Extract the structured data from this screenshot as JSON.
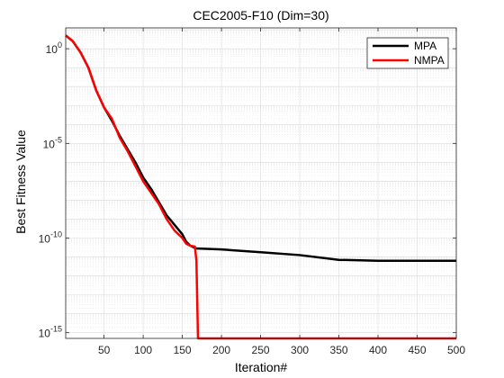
{
  "chart_data": {
    "type": "line",
    "title": "CEC2005-F10 (Dim=30)",
    "xlabel": "Iteration#",
    "ylabel": "Best Fitness Value",
    "xlim": [
      1,
      500
    ],
    "ylim_exponent": [
      -15.3,
      1.1
    ],
    "yscale": "log",
    "grid": true,
    "legend_position": "top-right",
    "x_ticks": [
      50,
      100,
      150,
      200,
      250,
      300,
      350,
      400,
      450,
      500
    ],
    "y_ticks": [
      {
        "base": "10",
        "exp": "0",
        "value": 0
      },
      {
        "base": "10",
        "exp": "-5",
        "value": -5
      },
      {
        "base": "10",
        "exp": "-10",
        "value": -10
      },
      {
        "base": "10",
        "exp": "-15",
        "value": -15
      }
    ],
    "series": [
      {
        "name": "MPA",
        "color": "#000000",
        "points_log10": [
          [
            1,
            0.7
          ],
          [
            10,
            0.4
          ],
          [
            20,
            -0.2
          ],
          [
            30,
            -1.0
          ],
          [
            40,
            -2.2
          ],
          [
            50,
            -3.1
          ],
          [
            60,
            -3.8
          ],
          [
            70,
            -4.6
          ],
          [
            80,
            -5.3
          ],
          [
            90,
            -6.0
          ],
          [
            100,
            -6.8
          ],
          [
            110,
            -7.4
          ],
          [
            120,
            -8.1
          ],
          [
            130,
            -8.8
          ],
          [
            140,
            -9.3
          ],
          [
            150,
            -9.8
          ],
          [
            155,
            -10.2
          ],
          [
            160,
            -10.4
          ],
          [
            165,
            -10.5
          ],
          [
            168,
            -10.55
          ],
          [
            170,
            -10.55
          ],
          [
            200,
            -10.6
          ],
          [
            250,
            -10.75
          ],
          [
            300,
            -10.9
          ],
          [
            350,
            -11.15
          ],
          [
            400,
            -11.2
          ],
          [
            450,
            -11.2
          ],
          [
            500,
            -11.2
          ]
        ]
      },
      {
        "name": "NMPA",
        "color": "#ff0000",
        "points_log10": [
          [
            1,
            0.7
          ],
          [
            10,
            0.4
          ],
          [
            20,
            -0.2
          ],
          [
            30,
            -1.0
          ],
          [
            40,
            -2.2
          ],
          [
            50,
            -3.1
          ],
          [
            60,
            -3.7
          ],
          [
            70,
            -4.7
          ],
          [
            80,
            -5.4
          ],
          [
            90,
            -6.2
          ],
          [
            100,
            -7.0
          ],
          [
            110,
            -7.6
          ],
          [
            120,
            -8.2
          ],
          [
            130,
            -9.0
          ],
          [
            140,
            -9.6
          ],
          [
            150,
            -10.0
          ],
          [
            155,
            -10.3
          ],
          [
            160,
            -10.4
          ],
          [
            166,
            -10.45
          ],
          [
            168,
            -11.2
          ],
          [
            170,
            -15.3
          ],
          [
            200,
            -15.3
          ],
          [
            300,
            -15.3
          ],
          [
            400,
            -15.3
          ],
          [
            500,
            -15.3
          ]
        ]
      }
    ]
  }
}
